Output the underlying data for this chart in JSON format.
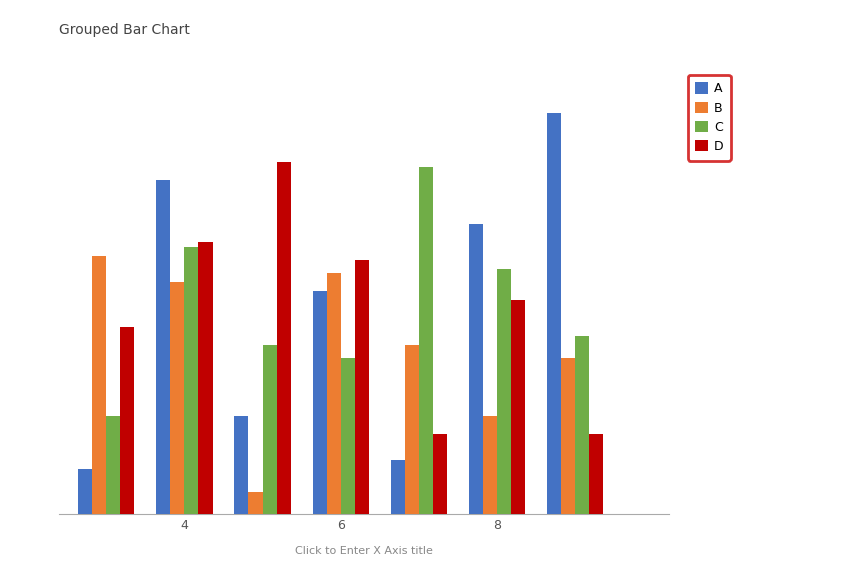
{
  "title": "Grouped Bar Chart",
  "xlabel": "Click to Enter X Axis title",
  "series": [
    "A",
    "B",
    "C",
    "D"
  ],
  "colors": [
    "#4472C4",
    "#ED7D31",
    "#70AD47",
    "#C00000"
  ],
  "x_positions": [
    3,
    4,
    5,
    6,
    7,
    8,
    9
  ],
  "data": {
    "A": [
      1.0,
      7.5,
      2.2,
      5.0,
      1.2,
      6.5,
      9.0
    ],
    "B": [
      5.8,
      5.2,
      0.5,
      5.4,
      3.8,
      2.2,
      3.5
    ],
    "C": [
      2.2,
      6.0,
      3.8,
      3.5,
      7.8,
      5.5,
      4.0
    ],
    "D": [
      4.2,
      6.1,
      7.9,
      5.7,
      1.8,
      4.8,
      1.8
    ]
  },
  "ylim": [
    0,
    10
  ],
  "bar_width": 0.18,
  "background_color": "#FFFFFF",
  "grid_color": "#D0D0D0",
  "title_fontsize": 10,
  "axis_label_fontsize": 8,
  "tick_fontsize": 9,
  "legend_box_color": "#CC0000",
  "xlim": [
    2.4,
    10.2
  ]
}
